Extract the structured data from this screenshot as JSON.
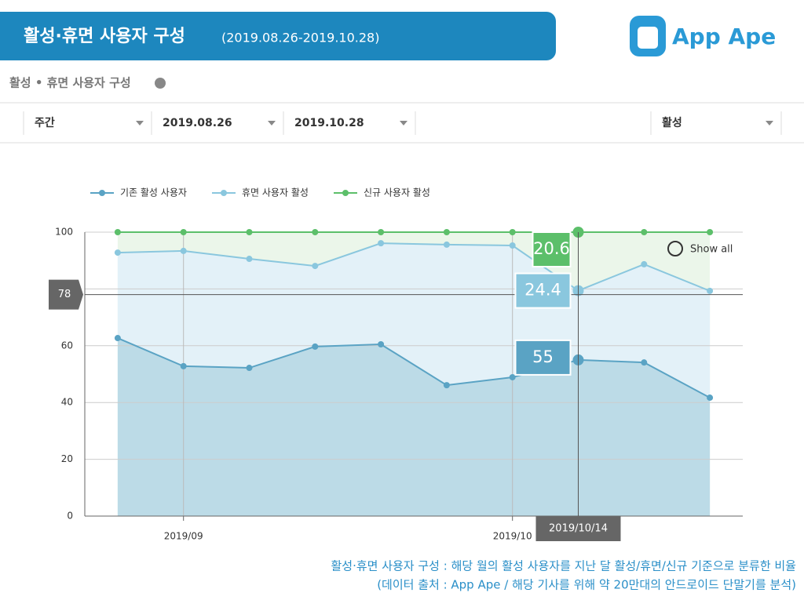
{
  "header": {
    "title": "활성·휴면 사용자 구성",
    "subtitle": "(2019.08.26-2019.10.28)",
    "logo": "App Ape"
  },
  "section_title": "활성 • 휴면 사용자 구성",
  "filters": [
    "주간",
    "2019.08.26",
    "2019.10.28",
    "활성"
  ],
  "chart_data": {
    "type": "stacked_area",
    "xlim": [
      -0.5,
      9.5
    ],
    "xticks": [
      {
        "value": 1,
        "label": "2019/09"
      },
      {
        "value": 6,
        "label": "2019/10"
      }
    ],
    "ylim": [
      0,
      100
    ],
    "yticks": [
      0,
      20,
      40,
      60,
      80,
      100
    ],
    "grid": true,
    "series": [
      {
        "name": "기존 활성 사용자",
        "color": "#5aa3c4",
        "fill": "#bcdbe7",
        "values": [
          62.7,
          52.8,
          52.2,
          59.7,
          60.5,
          46.1,
          48.9,
          55,
          54.1,
          41.7
        ]
      },
      {
        "name": "휴면 사용자 활성",
        "color": "#8ac7de",
        "fill": "#e3f1f8",
        "values": [
          30.1,
          40.6,
          38.4,
          28.4,
          35.6,
          49.5,
          46.4,
          24.4,
          34.6,
          37.6
        ]
      },
      {
        "name": "신규 사용자 활성",
        "color": "#5cbf6a",
        "fill": "#ebf6ea",
        "values": [
          7.2,
          6.6,
          9.4,
          11.9,
          3.9,
          4.4,
          4.7,
          20.6,
          11.3,
          20.7
        ]
      }
    ],
    "legend": "top-left",
    "crosshair_y": 78,
    "hover_index": 7,
    "hover_label": "2019/10/14",
    "show_all": "Show all"
  },
  "footer": [
    "활성·휴면 사용자 구성 : 해당 월의 활성 사용자를 지난 달 활성/휴면/신규 기준으로 분류한 비율",
    "(데이터 출처 : App Ape / 해당 기사를 위해 약 20만대의 안드로이드 단말기를 분석)"
  ]
}
